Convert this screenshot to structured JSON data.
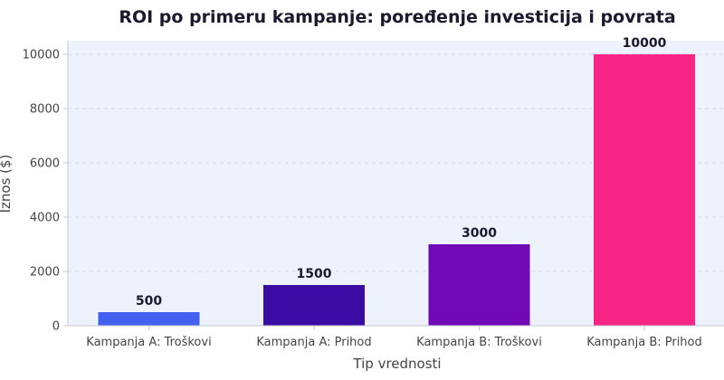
{
  "chart_data": {
    "type": "bar",
    "title": "ROI po primeru kampanje: poređenje investicija i povrata",
    "xlabel": "Tip vrednosti",
    "ylabel": "Iznos ($)",
    "categories": [
      "Kampanja A: Troškovi",
      "Kampanja A: Prihod",
      "Kampanja B: Troškovi",
      "Kampanja B: Prihod"
    ],
    "values": [
      500,
      1500,
      3000,
      10000
    ],
    "data_labels": [
      "500",
      "1500",
      "3000",
      "10000"
    ],
    "colors": [
      "#4361ee",
      "#3a0ca3",
      "#7209b7",
      "#f72585"
    ],
    "ylim": [
      0,
      10500
    ],
    "yticks": [
      0,
      2000,
      4000,
      6000,
      8000,
      10000
    ],
    "ytick_labels": [
      "0",
      "2000",
      "4000",
      "6000",
      "8000",
      "10000"
    ],
    "grid": true,
    "plot_background": "#eef2fc"
  }
}
